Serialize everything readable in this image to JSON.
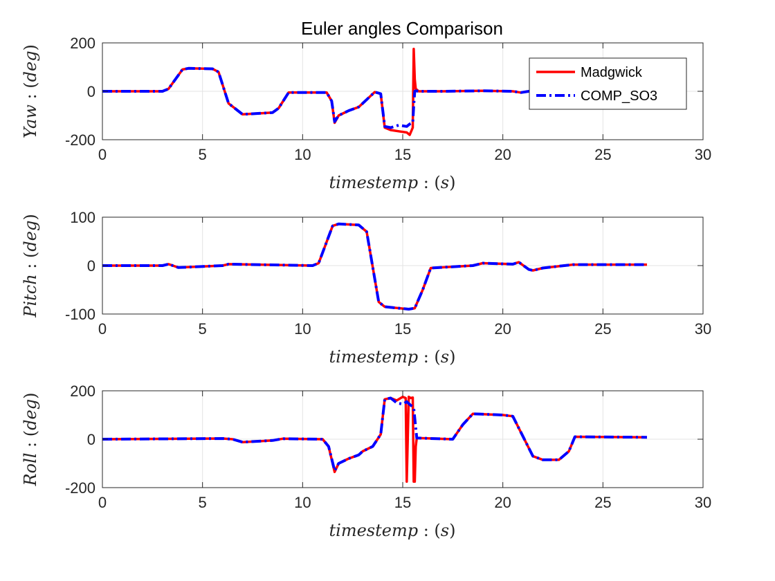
{
  "figure": {
    "title": "Euler angles Comparison"
  },
  "legend": {
    "entries": [
      {
        "name": "Madgwick",
        "color": "#ff0000",
        "style": "solid"
      },
      {
        "name": "COMP_SO3",
        "color": "#0000ff",
        "style": "dashdot"
      }
    ]
  },
  "chart_data": [
    {
      "type": "line",
      "id": "yaw",
      "title": "Euler angles Comparison",
      "xlabel": "timestemp : (s)",
      "ylabel": "Yaw : (deg)",
      "xlim": [
        0,
        30
      ],
      "ylim": [
        -200,
        200
      ],
      "xticks": [
        "0",
        "5",
        "10",
        "15",
        "20",
        "25",
        "30"
      ],
      "yticks": [
        "200",
        "0",
        "-200"
      ],
      "grid": true,
      "legend": "top-right",
      "series": [
        {
          "name": "Madgwick",
          "x": [
            0,
            3.0,
            3.3,
            4.0,
            4.3,
            5.5,
            5.8,
            6.3,
            7.0,
            8.5,
            8.8,
            9.3,
            11.2,
            11.45,
            11.6,
            11.8,
            12.3,
            12.8,
            13.0,
            13.6,
            13.9,
            14.1,
            14.4,
            14.8,
            15.2,
            15.35,
            15.5,
            15.55,
            15.6,
            15.65,
            15.8,
            17,
            19,
            20.5,
            20.9,
            21.3,
            21.5
          ],
          "y": [
            0,
            0,
            10,
            90,
            95,
            93,
            80,
            -50,
            -95,
            -88,
            -70,
            -5,
            -5,
            -40,
            -130,
            -100,
            -80,
            -65,
            -50,
            -3,
            -10,
            -150,
            -160,
            -165,
            -170,
            -180,
            -150,
            175,
            50,
            10,
            0,
            0,
            2,
            0,
            -5,
            0,
            0
          ]
        },
        {
          "name": "COMP_SO3",
          "x": [
            0,
            3.0,
            3.3,
            4.0,
            4.3,
            5.5,
            5.8,
            6.3,
            7.0,
            8.5,
            8.8,
            9.3,
            11.2,
            11.45,
            11.6,
            11.8,
            12.3,
            12.8,
            13.0,
            13.6,
            13.9,
            14.1,
            14.4,
            14.8,
            15.2,
            15.35,
            15.5,
            15.55,
            15.6,
            15.65,
            15.8,
            17,
            19,
            20.5,
            20.9,
            21.3,
            21.5
          ],
          "y": [
            0,
            0,
            10,
            90,
            95,
            93,
            80,
            -50,
            -95,
            -88,
            -70,
            -5,
            -5,
            -40,
            -125,
            -100,
            -80,
            -65,
            -50,
            -3,
            -10,
            -145,
            -150,
            -140,
            -145,
            -135,
            -130,
            -60,
            0,
            2,
            0,
            0,
            2,
            0,
            -5,
            0,
            0
          ]
        }
      ]
    },
    {
      "type": "line",
      "id": "pitch",
      "xlabel": "timestemp : (s)",
      "ylabel": "Pitch : (deg)",
      "xlim": [
        0,
        30
      ],
      "ylim": [
        -100,
        100
      ],
      "xticks": [
        "0",
        "5",
        "10",
        "15",
        "20",
        "25",
        "30"
      ],
      "yticks": [
        "100",
        "0",
        "-100"
      ],
      "grid": true,
      "series": [
        {
          "name": "Madgwick",
          "x": [
            0,
            3.0,
            3.3,
            3.8,
            6.0,
            6.3,
            10.5,
            10.8,
            11.5,
            11.8,
            12.8,
            13.2,
            13.8,
            14.1,
            15.3,
            15.6,
            16.0,
            16.4,
            18.5,
            19.0,
            20.5,
            20.8,
            21.3,
            21.5,
            22.0,
            23.5,
            25.0,
            27.2
          ],
          "y": [
            0,
            0,
            3,
            -4,
            0,
            3,
            0,
            5,
            82,
            86,
            84,
            70,
            -75,
            -85,
            -90,
            -88,
            -50,
            -5,
            0,
            5,
            3,
            7,
            -8,
            -10,
            -5,
            2,
            2,
            2
          ]
        },
        {
          "name": "COMP_SO3",
          "x": [
            0,
            3.0,
            3.3,
            3.8,
            6.0,
            6.3,
            10.5,
            10.8,
            11.5,
            11.8,
            12.8,
            13.2,
            13.8,
            14.1,
            15.3,
            15.6,
            16.0,
            16.4,
            18.5,
            19.0,
            20.5,
            20.8,
            21.3,
            21.5,
            22.0,
            23.5,
            25.0,
            27.2
          ],
          "y": [
            0,
            0,
            3,
            -4,
            0,
            3,
            0,
            5,
            82,
            86,
            84,
            70,
            -75,
            -85,
            -90,
            -88,
            -50,
            -5,
            0,
            5,
            3,
            7,
            -8,
            -10,
            -5,
            2,
            2,
            2
          ]
        }
      ]
    },
    {
      "type": "line",
      "id": "roll",
      "xlabel": "timestemp : (s)",
      "ylabel": "Roll : (deg)",
      "xlim": [
        0,
        30
      ],
      "ylim": [
        -200,
        200
      ],
      "xticks": [
        "0",
        "5",
        "10",
        "15",
        "20",
        "25",
        "30"
      ],
      "yticks": [
        "200",
        "0",
        "-200"
      ],
      "grid": true,
      "series": [
        {
          "name": "Madgwick",
          "x": [
            0,
            6.0,
            6.5,
            7.0,
            8.5,
            9.0,
            11.0,
            11.3,
            11.6,
            11.8,
            12.3,
            12.8,
            13.0,
            13.5,
            13.9,
            14.1,
            14.4,
            14.7,
            15.0,
            15.15,
            15.2,
            15.3,
            15.4,
            15.5,
            15.55,
            15.6,
            15.65,
            15.7,
            17.5,
            18.0,
            18.5,
            20.0,
            20.5,
            21.5,
            22.0,
            22.8,
            23.3,
            23.6,
            27.2
          ],
          "y": [
            0,
            3,
            0,
            -12,
            -5,
            2,
            0,
            -30,
            -135,
            -100,
            -80,
            -65,
            -50,
            -30,
            20,
            165,
            170,
            160,
            175,
            170,
            -175,
            175,
            170,
            172,
            -175,
            -175,
            -30,
            5,
            0,
            60,
            105,
            100,
            95,
            -70,
            -85,
            -85,
            -50,
            10,
            8
          ]
        },
        {
          "name": "COMP_SO3",
          "x": [
            0,
            6.0,
            6.5,
            7.0,
            8.5,
            9.0,
            11.0,
            11.3,
            11.6,
            11.8,
            12.3,
            12.8,
            13.0,
            13.5,
            13.9,
            14.1,
            14.4,
            14.7,
            15.0,
            15.2,
            15.4,
            15.55,
            15.7,
            17.5,
            18.0,
            18.5,
            20.0,
            20.5,
            21.5,
            22.0,
            22.8,
            23.3,
            23.6,
            27.2
          ],
          "y": [
            0,
            3,
            0,
            -12,
            -5,
            2,
            0,
            -30,
            -130,
            -100,
            -80,
            -65,
            -50,
            -30,
            20,
            165,
            170,
            150,
            145,
            155,
            140,
            130,
            5,
            0,
            60,
            105,
            100,
            95,
            -70,
            -85,
            -85,
            -50,
            10,
            8
          ]
        }
      ]
    }
  ]
}
